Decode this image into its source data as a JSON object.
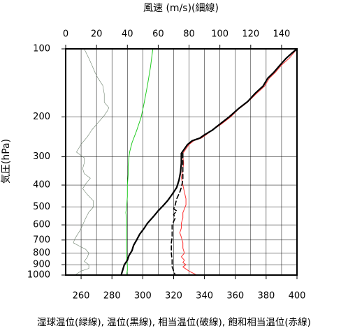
{
  "chart_data": {
    "type": "line",
    "top_axis": {
      "title": "風速 (m/s)(細線)",
      "min": 0,
      "max": 150,
      "ticks": [
        0,
        20,
        40,
        60,
        80,
        100,
        120,
        140
      ],
      "tick_labels": [
        "0",
        "20",
        "40",
        "60",
        "80",
        "100",
        "120",
        "140"
      ]
    },
    "bottom_axis": {
      "title": "湿球温位(緑線), 温位(黒線), 相当温位(破線), 飽和相当温位(赤線)",
      "min": 250,
      "max": 400,
      "ticks": [
        260,
        280,
        300,
        320,
        340,
        360,
        380,
        400
      ],
      "tick_labels": [
        "260",
        "280",
        "300",
        "320",
        "340",
        "360",
        "380",
        "400"
      ]
    },
    "left_axis": {
      "title": "気圧(hPa)",
      "scale": "log",
      "min": 100,
      "max": 1000,
      "reversed": true,
      "ticks": [
        100,
        200,
        300,
        400,
        500,
        600,
        700,
        800,
        900,
        1000
      ],
      "tick_labels": [
        "100",
        "200",
        "300",
        "400",
        "500",
        "600",
        "700",
        "800",
        "900",
        "1000"
      ]
    },
    "grid": true,
    "series": [
      {
        "key": "wind_speed",
        "color": "#6b7f6b",
        "axis": "top",
        "points": [
          [
            12,
            100
          ],
          [
            15,
            110
          ],
          [
            17,
            118
          ],
          [
            19,
            127
          ],
          [
            21,
            135
          ],
          [
            24,
            145
          ],
          [
            25,
            158
          ],
          [
            25,
            172
          ],
          [
            28,
            182
          ],
          [
            27,
            188
          ],
          [
            25,
            197
          ],
          [
            21,
            212
          ],
          [
            17,
            228
          ],
          [
            14,
            245
          ],
          [
            10,
            264
          ],
          [
            7,
            286
          ],
          [
            12,
            303
          ],
          [
            12,
            320
          ],
          [
            11,
            338
          ],
          [
            12,
            356
          ],
          [
            16,
            373
          ],
          [
            13,
            395
          ],
          [
            11,
            415
          ],
          [
            14,
            440
          ],
          [
            18,
            470
          ],
          [
            18,
            500
          ],
          [
            15,
            527
          ],
          [
            13,
            560
          ],
          [
            11,
            600
          ],
          [
            9,
            640
          ],
          [
            6,
            690
          ],
          [
            5,
            720
          ],
          [
            9,
            745
          ],
          [
            13,
            770
          ],
          [
            15,
            800
          ],
          [
            14,
            835
          ],
          [
            12,
            870
          ],
          [
            15,
            900
          ],
          [
            15,
            935
          ],
          [
            10,
            960
          ],
          [
            6,
            1000
          ]
        ]
      },
      {
        "key": "wet_bulb_theta",
        "color": "#22cc22",
        "points": [
          [
            306.5,
            100
          ],
          [
            305,
            120
          ],
          [
            303,
            145
          ],
          [
            301,
            172
          ],
          [
            299,
            200
          ],
          [
            296,
            230
          ],
          [
            293,
            260
          ],
          [
            291.5,
            285
          ],
          [
            291,
            300
          ],
          [
            290.5,
            330
          ],
          [
            290.5,
            360
          ],
          [
            290,
            400
          ],
          [
            290,
            450
          ],
          [
            289.5,
            500
          ],
          [
            289,
            530
          ],
          [
            289.5,
            560
          ],
          [
            289.5,
            600
          ],
          [
            289.5,
            650
          ],
          [
            289.5,
            700
          ],
          [
            289.5,
            750
          ],
          [
            289.5,
            800
          ],
          [
            289.5,
            850
          ],
          [
            290,
            900
          ],
          [
            290,
            950
          ],
          [
            289.5,
            1000
          ]
        ]
      },
      {
        "key": "saturated_equivalent_theta",
        "color": "#ff3333",
        "points": [
          [
            400,
            100
          ],
          [
            398,
            104
          ],
          [
            395,
            110
          ],
          [
            390,
            118
          ],
          [
            386,
            127
          ],
          [
            382,
            135
          ],
          [
            379,
            146
          ],
          [
            374,
            157
          ],
          [
            368,
            172
          ],
          [
            362,
            185
          ],
          [
            357,
            200
          ],
          [
            351,
            215
          ],
          [
            345,
            229
          ],
          [
            341,
            240
          ],
          [
            338,
            248
          ],
          [
            333,
            255
          ],
          [
            330,
            265
          ],
          [
            328,
            277
          ],
          [
            326,
            290
          ],
          [
            326,
            300
          ],
          [
            326.5,
            320
          ],
          [
            326,
            340
          ],
          [
            325,
            370
          ],
          [
            326,
            400
          ],
          [
            327,
            430
          ],
          [
            328,
            460
          ],
          [
            328,
            490
          ],
          [
            326,
            530
          ],
          [
            326,
            560
          ],
          [
            325,
            590
          ],
          [
            325,
            620
          ],
          [
            324,
            650
          ],
          [
            325,
            680
          ],
          [
            326,
            720
          ],
          [
            326,
            760
          ],
          [
            327,
            800
          ],
          [
            325,
            830
          ],
          [
            327,
            860
          ],
          [
            326,
            880
          ],
          [
            328,
            900
          ],
          [
            326,
            920
          ],
          [
            330,
            960
          ],
          [
            335,
            1000
          ]
        ]
      },
      {
        "key": "equivalent_theta",
        "color": "#000000",
        "points": [
          [
            326,
            290
          ],
          [
            326,
            320
          ],
          [
            326,
            350
          ],
          [
            326,
            380
          ],
          [
            325,
            410
          ],
          [
            324,
            430
          ],
          [
            322,
            460
          ],
          [
            321,
            490
          ],
          [
            320,
            510
          ],
          [
            322,
            520
          ],
          [
            320,
            540
          ],
          [
            321,
            560
          ],
          [
            319,
            600
          ],
          [
            319,
            640
          ],
          [
            319,
            680
          ],
          [
            318.5,
            720
          ],
          [
            318.5,
            760
          ],
          [
            318.5,
            800
          ],
          [
            319,
            860
          ],
          [
            319,
            920
          ],
          [
            321,
            1000
          ]
        ]
      },
      {
        "key": "theta",
        "color": "#000000",
        "points": [
          [
            400,
            100
          ],
          [
            397,
            104
          ],
          [
            393,
            110
          ],
          [
            389,
            118
          ],
          [
            385,
            127
          ],
          [
            381,
            135
          ],
          [
            378,
            146
          ],
          [
            373,
            157
          ],
          [
            368,
            171
          ],
          [
            362,
            184
          ],
          [
            356,
            200
          ],
          [
            350,
            215
          ],
          [
            345,
            229
          ],
          [
            340,
            240
          ],
          [
            337,
            248
          ],
          [
            332,
            255
          ],
          [
            329,
            265
          ],
          [
            327,
            277
          ],
          [
            325,
            290
          ],
          [
            325,
            320
          ],
          [
            324.5,
            350
          ],
          [
            323.5,
            380
          ],
          [
            322,
            410
          ],
          [
            319,
            440
          ],
          [
            316,
            470
          ],
          [
            313,
            495
          ],
          [
            310,
            520
          ],
          [
            307,
            550
          ],
          [
            303,
            590
          ],
          [
            301,
            620
          ],
          [
            298,
            660
          ],
          [
            296,
            700
          ],
          [
            294,
            740
          ],
          [
            293,
            780
          ],
          [
            291,
            820
          ],
          [
            290,
            860
          ],
          [
            288,
            900
          ],
          [
            287,
            950
          ],
          [
            286,
            1000
          ]
        ]
      }
    ]
  }
}
